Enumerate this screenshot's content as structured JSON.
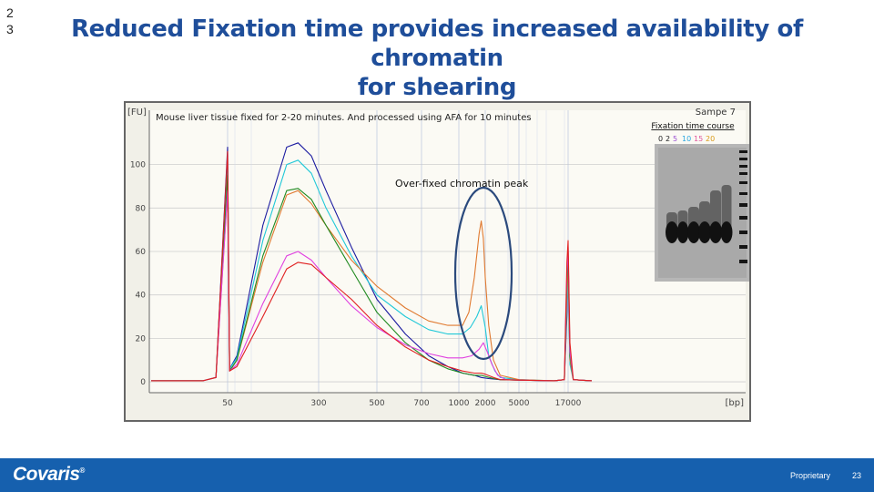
{
  "slide_number": "2\n3",
  "title_line1": "Reduced Fixation time provides increased availability of chromatin",
  "title_line2": "for shearing",
  "footer": {
    "logo": "Covaris",
    "logo_mark": "®",
    "proprietary": "Proprietary",
    "page": "23"
  },
  "colors": {
    "title": "#1f4e9a",
    "footer": "#1660ae",
    "highlight_ellipse": "#2b4a7d"
  },
  "gel": {
    "sample": "Sampe 7",
    "caption": "Fixation time course",
    "lanes": [
      {
        "label": "0",
        "color": "#222222"
      },
      {
        "label": "2",
        "color": "#222222"
      },
      {
        "label": "5",
        "color": "#9b4fd1"
      },
      {
        "label": "10",
        "color": "#2aa6e0"
      },
      {
        "label": "15",
        "color": "#e0559b"
      },
      {
        "label": "20",
        "color": "#d99a1a"
      }
    ]
  },
  "chart_data": {
    "type": "line",
    "title": "Mouse liver tissue fixed for 2-20 minutes. And processed using AFA for 10 minutes",
    "ylabel": "[FU]",
    "xlabel": "[bp]",
    "annotation": "Over-fixed chromatin peak",
    "ylim": [
      -5,
      125
    ],
    "y_ticks": [
      0,
      20,
      40,
      60,
      80,
      100
    ],
    "x_scale": "bp-ladder",
    "x_ticks": [
      "50",
      "300",
      "500",
      "700",
      "1000",
      "2000",
      "5000",
      "17000"
    ],
    "x_ticks_bp": [
      50,
      300,
      500,
      700,
      1000,
      2000,
      5000,
      17000
    ],
    "series": [
      {
        "name": "blue",
        "color": "#1a1aa0",
        "points": [
          [
            25,
            0.5
          ],
          [
            40,
            0.5
          ],
          [
            45,
            2
          ],
          [
            50,
            108
          ],
          [
            52,
            6
          ],
          [
            60,
            12
          ],
          [
            100,
            72
          ],
          [
            160,
            108
          ],
          [
            200,
            110
          ],
          [
            260,
            104
          ],
          [
            320,
            88
          ],
          [
            400,
            62
          ],
          [
            500,
            38
          ],
          [
            620,
            22
          ],
          [
            750,
            12
          ],
          [
            900,
            7
          ],
          [
            1100,
            4
          ],
          [
            1500,
            3
          ],
          [
            1800,
            2
          ],
          [
            2200,
            1.5
          ],
          [
            3000,
            1
          ],
          [
            5000,
            0.8
          ],
          [
            12000,
            0.5
          ],
          [
            15500,
            1
          ],
          [
            16500,
            30
          ],
          [
            17000,
            52
          ],
          [
            17500,
            10
          ],
          [
            18500,
            1
          ],
          [
            25000,
            0.5
          ]
        ]
      },
      {
        "name": "cyan",
        "color": "#20c8d8",
        "points": [
          [
            25,
            0.5
          ],
          [
            40,
            0.5
          ],
          [
            45,
            2
          ],
          [
            50,
            100
          ],
          [
            52,
            6
          ],
          [
            60,
            11
          ],
          [
            100,
            65
          ],
          [
            160,
            100
          ],
          [
            200,
            102
          ],
          [
            260,
            96
          ],
          [
            320,
            80
          ],
          [
            400,
            58
          ],
          [
            500,
            40
          ],
          [
            620,
            30
          ],
          [
            750,
            24
          ],
          [
            900,
            22
          ],
          [
            1100,
            22
          ],
          [
            1350,
            25
          ],
          [
            1600,
            30
          ],
          [
            1800,
            35
          ],
          [
            2000,
            25
          ],
          [
            2200,
            12
          ],
          [
            2600,
            5
          ],
          [
            3000,
            2
          ],
          [
            5000,
            1
          ],
          [
            12000,
            0.5
          ],
          [
            15500,
            1
          ],
          [
            16500,
            35
          ],
          [
            17000,
            48
          ],
          [
            17500,
            8
          ],
          [
            18500,
            1
          ],
          [
            25000,
            0.5
          ]
        ]
      },
      {
        "name": "orange",
        "color": "#e07a30",
        "points": [
          [
            25,
            0.5
          ],
          [
            40,
            0.5
          ],
          [
            45,
            2
          ],
          [
            50,
            88
          ],
          [
            52,
            5
          ],
          [
            60,
            10
          ],
          [
            100,
            55
          ],
          [
            160,
            86
          ],
          [
            200,
            88
          ],
          [
            260,
            82
          ],
          [
            320,
            72
          ],
          [
            400,
            56
          ],
          [
            500,
            44
          ],
          [
            620,
            34
          ],
          [
            750,
            28
          ],
          [
            900,
            26
          ],
          [
            1100,
            26
          ],
          [
            1300,
            32
          ],
          [
            1500,
            48
          ],
          [
            1700,
            68
          ],
          [
            1800,
            74
          ],
          [
            1900,
            66
          ],
          [
            2000,
            48
          ],
          [
            2200,
            26
          ],
          [
            2500,
            10
          ],
          [
            3000,
            3
          ],
          [
            5000,
            1
          ],
          [
            12000,
            0.5
          ],
          [
            15500,
            1
          ],
          [
            16500,
            40
          ],
          [
            17000,
            55
          ],
          [
            17500,
            10
          ],
          [
            18500,
            1
          ],
          [
            25000,
            0.5
          ]
        ]
      },
      {
        "name": "green",
        "color": "#208a20",
        "points": [
          [
            25,
            0.5
          ],
          [
            40,
            0.5
          ],
          [
            45,
            2
          ],
          [
            50,
            95
          ],
          [
            52,
            5
          ],
          [
            60,
            10
          ],
          [
            100,
            58
          ],
          [
            160,
            88
          ],
          [
            200,
            89
          ],
          [
            260,
            84
          ],
          [
            320,
            72
          ],
          [
            400,
            52
          ],
          [
            500,
            32
          ],
          [
            620,
            18
          ],
          [
            750,
            10
          ],
          [
            900,
            6
          ],
          [
            1100,
            4
          ],
          [
            1500,
            3
          ],
          [
            1800,
            3
          ],
          [
            2000,
            2.5
          ],
          [
            2500,
            1.5
          ],
          [
            3000,
            1
          ],
          [
            5000,
            0.8
          ],
          [
            12000,
            0.5
          ],
          [
            15500,
            1
          ],
          [
            16500,
            45
          ],
          [
            17000,
            60
          ],
          [
            17500,
            12
          ],
          [
            18500,
            1
          ],
          [
            25000,
            0.5
          ]
        ]
      },
      {
        "name": "magenta",
        "color": "#e040e0",
        "points": [
          [
            25,
            0.5
          ],
          [
            40,
            0.5
          ],
          [
            45,
            2
          ],
          [
            50,
            88
          ],
          [
            52,
            5
          ],
          [
            60,
            8
          ],
          [
            100,
            36
          ],
          [
            160,
            58
          ],
          [
            200,
            60
          ],
          [
            260,
            56
          ],
          [
            320,
            48
          ],
          [
            400,
            35
          ],
          [
            500,
            25
          ],
          [
            620,
            17
          ],
          [
            750,
            13
          ],
          [
            900,
            11
          ],
          [
            1100,
            11
          ],
          [
            1400,
            12
          ],
          [
            1700,
            15
          ],
          [
            1900,
            18
          ],
          [
            2100,
            14
          ],
          [
            2400,
            8
          ],
          [
            2800,
            3
          ],
          [
            3500,
            1
          ],
          [
            5000,
            0.8
          ],
          [
            12000,
            0.5
          ],
          [
            15500,
            1
          ],
          [
            16500,
            50
          ],
          [
            17000,
            62
          ],
          [
            17500,
            14
          ],
          [
            18500,
            1
          ],
          [
            25000,
            0.5
          ]
        ]
      },
      {
        "name": "red",
        "color": "#e02020",
        "points": [
          [
            25,
            0.5
          ],
          [
            40,
            0.5
          ],
          [
            45,
            2
          ],
          [
            50,
            106
          ],
          [
            52,
            5
          ],
          [
            60,
            7
          ],
          [
            100,
            30
          ],
          [
            160,
            52
          ],
          [
            200,
            55
          ],
          [
            260,
            54
          ],
          [
            320,
            48
          ],
          [
            400,
            38
          ],
          [
            500,
            26
          ],
          [
            620,
            16
          ],
          [
            750,
            10
          ],
          [
            900,
            7
          ],
          [
            1100,
            5
          ],
          [
            1500,
            4
          ],
          [
            1800,
            4
          ],
          [
            2000,
            3.5
          ],
          [
            2500,
            2
          ],
          [
            3000,
            1
          ],
          [
            5000,
            0.8
          ],
          [
            12000,
            0.5
          ],
          [
            15500,
            1
          ],
          [
            16500,
            55
          ],
          [
            17000,
            65
          ],
          [
            17500,
            18
          ],
          [
            18500,
            1
          ],
          [
            25000,
            0.5
          ]
        ]
      }
    ]
  }
}
